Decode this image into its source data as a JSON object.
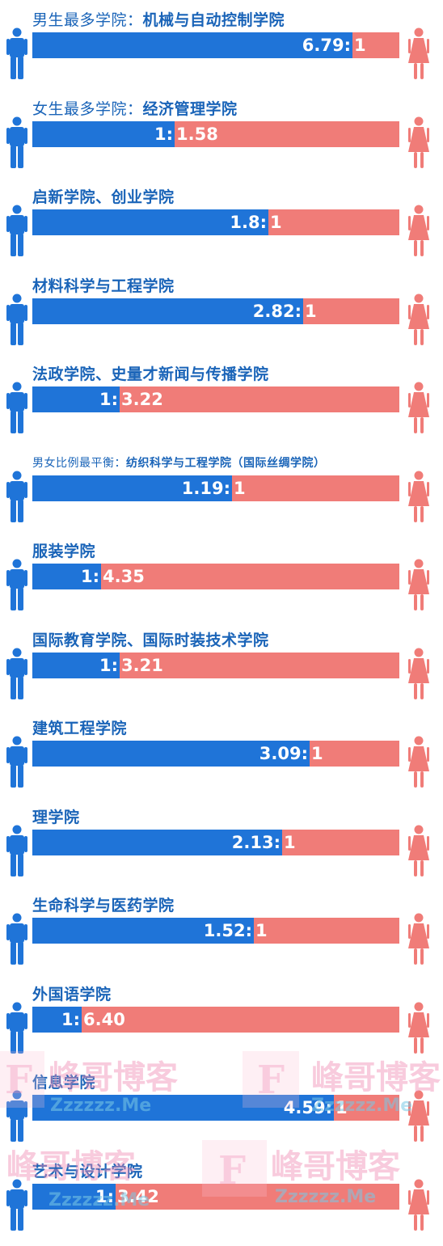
{
  "colors": {
    "male": "#1f74d8",
    "female": "#f07c78",
    "title": "#1a64b8"
  },
  "icons": {
    "male": "male-person-icon",
    "female": "female-person-icon"
  },
  "chart_data": {
    "type": "bar",
    "orientation": "horizontal-stacked-ratio",
    "series_order": [
      "male",
      "female"
    ],
    "rows": [
      {
        "prefix": "男生最多学院：",
        "name": "机械与自动控制学院",
        "male": 6.79,
        "female": 1,
        "label_m": "6.79",
        "label_f": "1"
      },
      {
        "prefix": "女生最多学院：",
        "name": "经济管理学院",
        "male": 1,
        "female": 1.58,
        "label_m": "1",
        "label_f": "1.58"
      },
      {
        "prefix": "",
        "name": "启新学院、创业学院",
        "male": 1.8,
        "female": 1,
        "label_m": "1.8",
        "label_f": "1"
      },
      {
        "prefix": "",
        "name": "材料科学与工程学院",
        "male": 2.82,
        "female": 1,
        "label_m": "2.82",
        "label_f": "1"
      },
      {
        "prefix": "",
        "name": "法政学院、史量才新闻与传播学院",
        "male": 1,
        "female": 3.22,
        "label_m": "1",
        "label_f": "3.22"
      },
      {
        "prefix": "男女比例最平衡：",
        "name": "纺织科学与工程学院（国际丝绸学院）",
        "male": 1.19,
        "female": 1,
        "label_m": "1.19",
        "label_f": "1",
        "small": true
      },
      {
        "prefix": "",
        "name": "服装学院",
        "male": 1,
        "female": 4.35,
        "label_m": "1",
        "label_f": "4.35"
      },
      {
        "prefix": "",
        "name": "国际教育学院、国际时装技术学院",
        "male": 1,
        "female": 3.21,
        "label_m": "1",
        "label_f": "3.21"
      },
      {
        "prefix": "",
        "name": "建筑工程学院",
        "male": 3.09,
        "female": 1,
        "label_m": "3.09",
        "label_f": "1"
      },
      {
        "prefix": "",
        "name": "理学院",
        "male": 2.13,
        "female": 1,
        "label_m": "2.13",
        "label_f": "1"
      },
      {
        "prefix": "",
        "name": "生命科学与医药学院",
        "male": 1.52,
        "female": 1,
        "label_m": "1.52",
        "label_f": "1"
      },
      {
        "prefix": "",
        "name": "外国语学院",
        "male": 1,
        "female": 6.4,
        "label_m": "1",
        "label_f": "6.40"
      },
      {
        "prefix": "",
        "name": "信息学院",
        "male": 4.59,
        "female": 1,
        "label_m": "4.59",
        "label_f": "1"
      },
      {
        "prefix": "",
        "name": "艺术与设计学院",
        "male": 1,
        "female": 3.42,
        "label_m": "1",
        "label_f": "3.42"
      }
    ]
  },
  "watermark": {
    "text_cn": "峰哥博客",
    "text_en": "Zzzzzz.Me",
    "letter": "F"
  }
}
